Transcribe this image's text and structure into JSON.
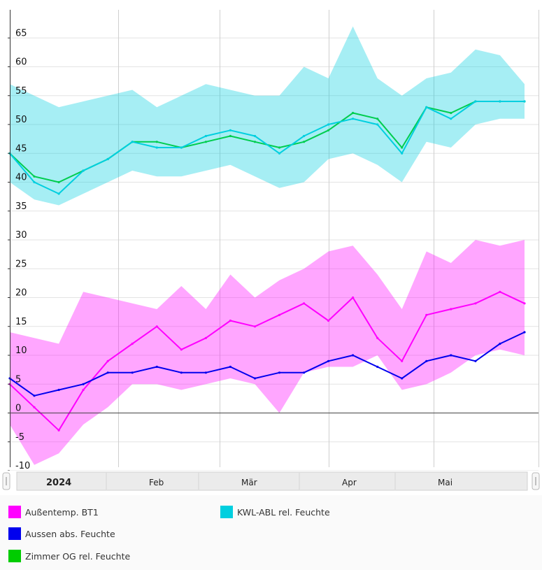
{
  "chart_data": {
    "type": "line",
    "yticks": [
      "65",
      "60",
      "55",
      "50",
      "45",
      "40",
      "35",
      "30",
      "25",
      "20",
      "15",
      "10",
      "5",
      "0",
      "-5",
      "-10"
    ],
    "ylim": [
      -10,
      67
    ],
    "x": [
      "2024-01-01",
      "2024-01-08",
      "2024-01-15",
      "2024-01-22",
      "2024-01-29",
      "2024-02-05",
      "2024-02-12",
      "2024-02-19",
      "2024-02-26",
      "2024-03-04",
      "2024-03-11",
      "2024-03-18",
      "2024-03-25",
      "2024-04-01",
      "2024-04-08",
      "2024-04-15",
      "2024-04-22",
      "2024-04-29",
      "2024-05-06",
      "2024-05-13",
      "2024-05-20",
      "2024-05-27"
    ],
    "xlim": [
      "2024-01-01",
      "2024-05-31"
    ],
    "navigator_labels": [
      "2024",
      "Feb",
      "Mär",
      "Apr",
      "Mai"
    ],
    "grid": true,
    "legend_position": "bottom",
    "series": [
      {
        "name": "Außentemp. BT1",
        "color": "#ff00ff",
        "values": [
          5,
          1,
          -3,
          4,
          9,
          12,
          15,
          11,
          13,
          16,
          15,
          17,
          19,
          16,
          20,
          13,
          9,
          17,
          18,
          19,
          21,
          19
        ],
        "min": [
          -2,
          -9,
          -7,
          -2,
          1,
          5,
          5,
          4,
          5,
          6,
          5,
          0,
          7,
          8,
          8,
          10,
          4,
          5,
          7,
          10,
          11,
          10
        ],
        "max": [
          14,
          13,
          12,
          21,
          20,
          19,
          18,
          22,
          18,
          24,
          20,
          23,
          25,
          28,
          29,
          24,
          18,
          28,
          26,
          30,
          29,
          30
        ]
      },
      {
        "name": "Aussen abs. Feuchte",
        "color": "#0000ee",
        "values": [
          6,
          3,
          4,
          5,
          7,
          7,
          8,
          7,
          7,
          8,
          6,
          7,
          7,
          9,
          10,
          8,
          6,
          9,
          10,
          9,
          12,
          14
        ]
      },
      {
        "name": "Zimmer OG rel. Feuchte",
        "color": "#00cc00",
        "values": [
          45,
          41,
          40,
          42,
          44,
          47,
          47,
          46,
          47,
          48,
          47,
          46,
          47,
          49,
          52,
          51,
          46,
          53,
          52,
          54,
          54,
          54
        ]
      },
      {
        "name": "KWL-ABL rel. Feuchte",
        "color": "#00cfdf",
        "values": [
          45,
          40,
          38,
          42,
          44,
          47,
          46,
          46,
          48,
          49,
          48,
          45,
          48,
          50,
          51,
          50,
          45,
          53,
          51,
          54,
          54,
          54
        ],
        "min": [
          40,
          37,
          36,
          38,
          40,
          42,
          41,
          41,
          42,
          43,
          41,
          39,
          40,
          44,
          45,
          43,
          40,
          47,
          46,
          50,
          51,
          51
        ],
        "max": [
          57,
          55,
          53,
          54,
          55,
          56,
          53,
          55,
          57,
          56,
          55,
          55,
          60,
          58,
          67,
          58,
          55,
          58,
          59,
          63,
          62,
          57
        ]
      }
    ]
  }
}
